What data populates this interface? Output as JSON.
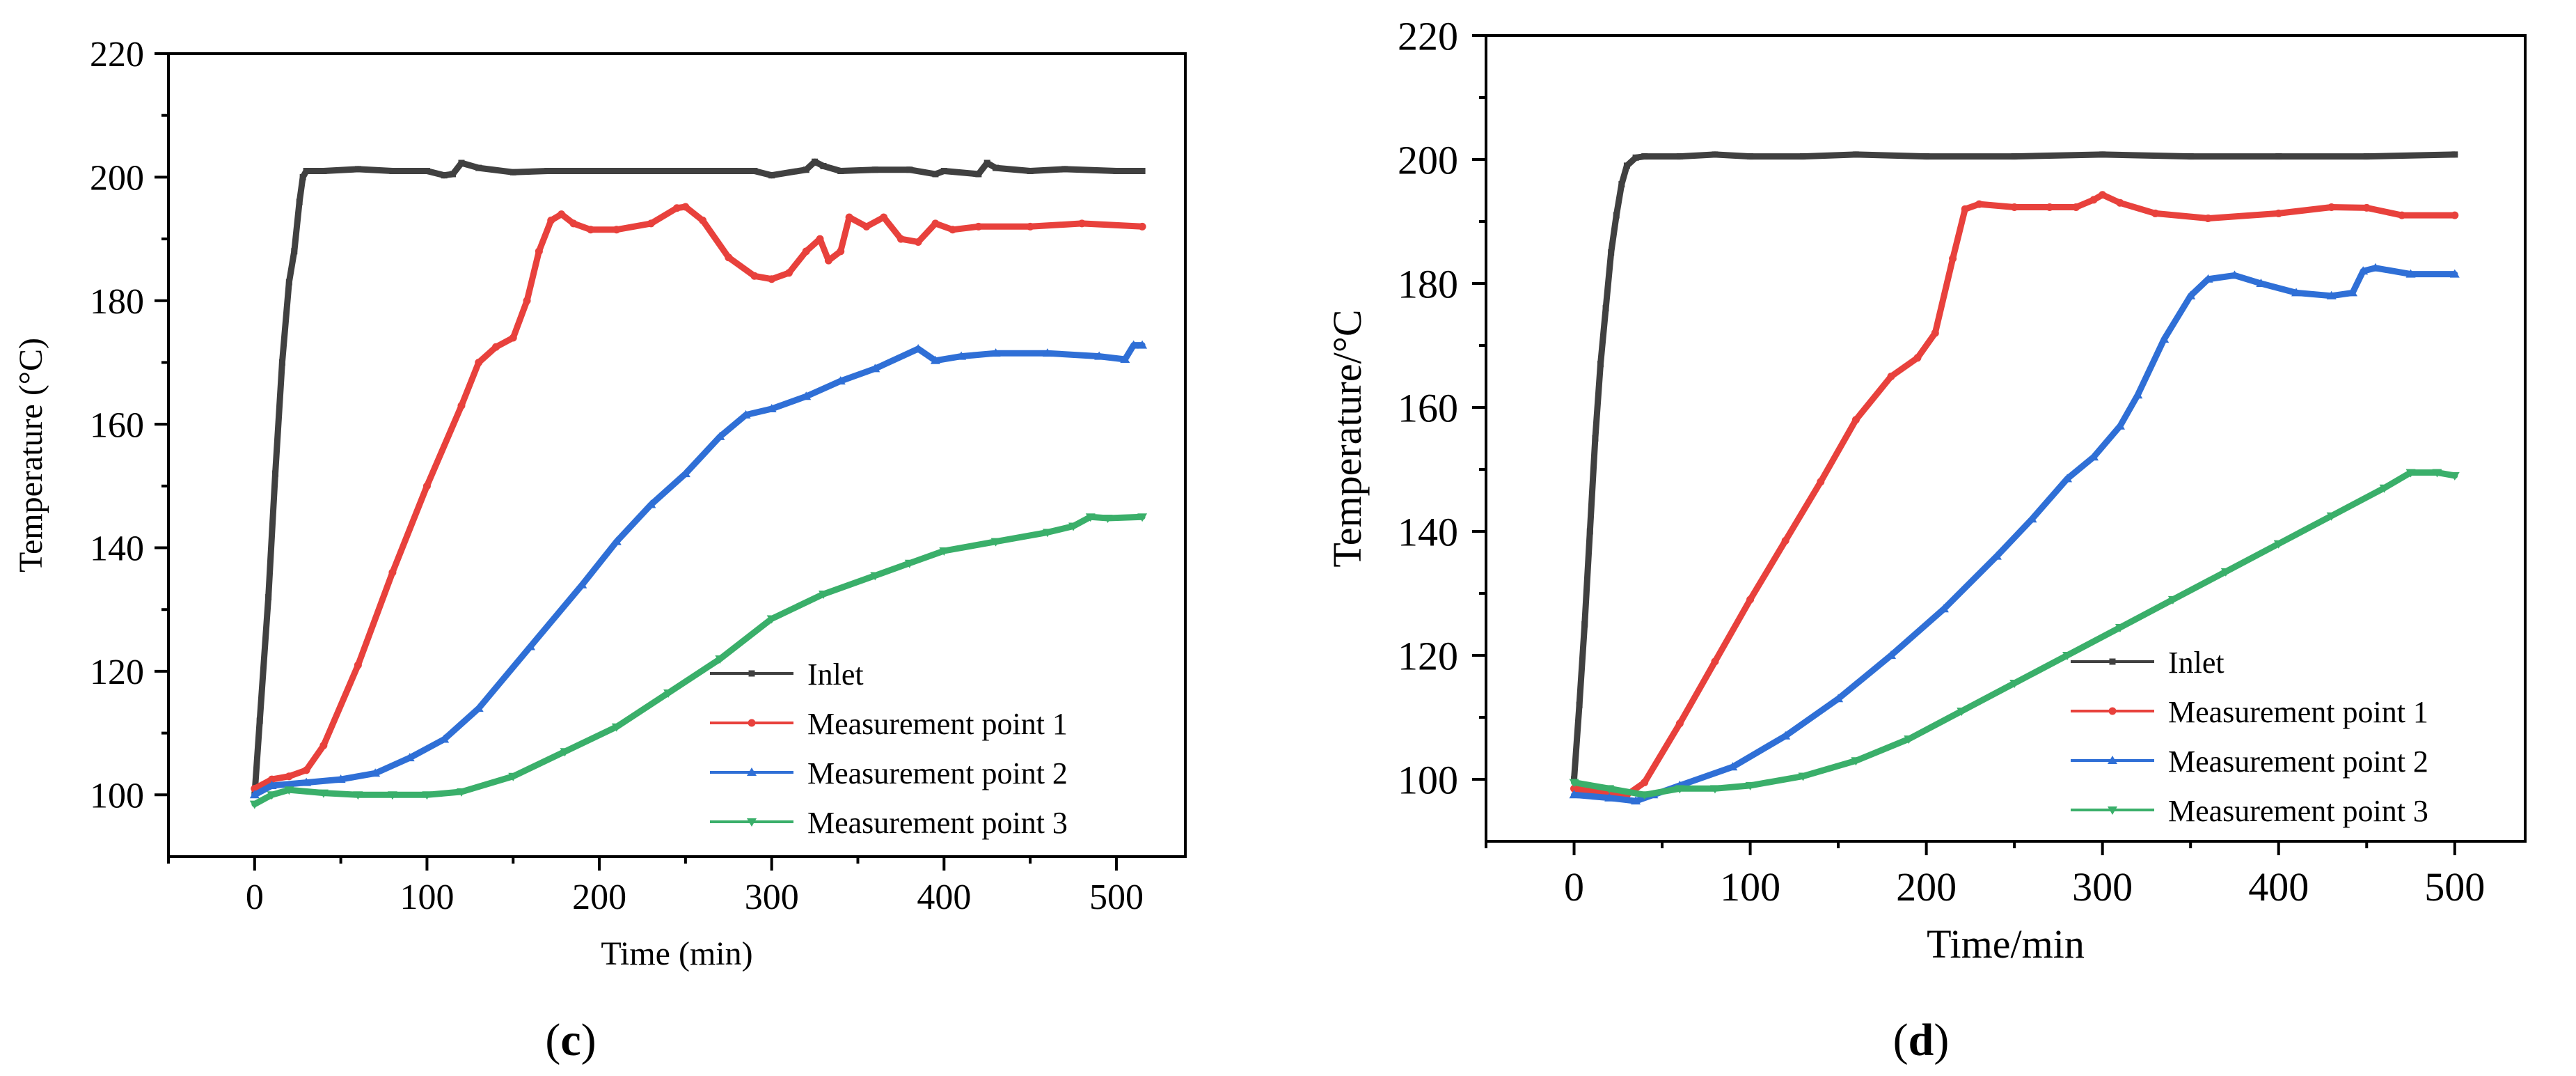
{
  "chart_data": [
    {
      "type": "line",
      "panel_label": "c",
      "title": "",
      "xlabel": "Time (min)",
      "ylabel": "Temperature (°C)",
      "xlim": [
        -50,
        540
      ],
      "ylim": [
        90,
        220
      ],
      "xticks": [
        0,
        100,
        200,
        300,
        400,
        500
      ],
      "yticks": [
        100,
        120,
        140,
        160,
        180,
        200,
        220
      ],
      "legend_position": "bottom-right",
      "series": [
        {
          "name": "Inlet",
          "color": "#404040",
          "marker": "square",
          "x": [
            0,
            3,
            8,
            12,
            16,
            20,
            23,
            26,
            28,
            30,
            40,
            60,
            80,
            100,
            110,
            115,
            120,
            130,
            150,
            170,
            200,
            250,
            290,
            300,
            320,
            325,
            330,
            340,
            360,
            380,
            395,
            400,
            420,
            425,
            430,
            450,
            470,
            500,
            515
          ],
          "y": [
            100,
            112,
            132,
            152,
            170,
            183,
            188,
            196,
            200,
            201,
            201,
            201.3,
            201,
            201,
            200.3,
            200.5,
            202.3,
            201.5,
            200.8,
            201,
            201,
            201,
            201,
            200.3,
            201.2,
            202.5,
            201.8,
            201,
            201.2,
            201.2,
            200.5,
            201,
            200.5,
            202.3,
            201.5,
            201,
            201.3,
            201,
            201
          ]
        },
        {
          "name": "Measurement point 1",
          "color": "#e8413c",
          "marker": "circle",
          "x": [
            0,
            10,
            20,
            30,
            40,
            60,
            80,
            100,
            120,
            130,
            140,
            150,
            158,
            165,
            172,
            178,
            185,
            195,
            210,
            230,
            245,
            250,
            260,
            275,
            290,
            300,
            310,
            320,
            328,
            333,
            340,
            345,
            355,
            365,
            375,
            385,
            395,
            405,
            420,
            450,
            480,
            515
          ],
          "y": [
            101,
            102.5,
            103,
            104,
            108,
            121,
            136,
            150,
            163,
            170,
            172.5,
            174,
            180,
            188,
            193,
            194,
            192.5,
            191.5,
            191.5,
            192.5,
            195,
            195.2,
            193,
            187,
            184,
            183.5,
            184.5,
            188,
            190,
            186.5,
            188,
            193.5,
            192,
            193.5,
            190,
            189.5,
            192.5,
            191.5,
            192,
            192,
            192.5,
            192
          ]
        },
        {
          "name": "Measurement point 2",
          "color": "#2f6fd6",
          "marker": "triangle",
          "x": [
            0,
            10,
            30,
            50,
            70,
            90,
            110,
            130,
            160,
            190,
            210,
            230,
            250,
            270,
            285,
            300,
            320,
            340,
            360,
            385,
            395,
            410,
            430,
            460,
            490,
            505,
            510,
            515
          ],
          "y": [
            100,
            101.5,
            102,
            102.5,
            103.5,
            106,
            109,
            114,
            124,
            134,
            141,
            147,
            152,
            158,
            161.5,
            162.5,
            164.5,
            167,
            169,
            172.2,
            170.3,
            171,
            171.5,
            171.5,
            171,
            170.5,
            172.8,
            172.8
          ]
        },
        {
          "name": "Measurement point 3",
          "color": "#3aaf6a",
          "marker": "triangle-down",
          "x": [
            0,
            10,
            20,
            40,
            60,
            80,
            100,
            120,
            150,
            180,
            210,
            240,
            270,
            300,
            330,
            360,
            380,
            400,
            430,
            460,
            475,
            485,
            495,
            515
          ],
          "y": [
            98.5,
            100,
            100.8,
            100.3,
            100,
            100,
            100,
            100.5,
            103,
            107,
            111,
            116.5,
            122,
            128.5,
            132.5,
            135.5,
            137.5,
            139.5,
            141,
            142.5,
            143.5,
            145,
            144.8,
            145
          ]
        }
      ]
    },
    {
      "type": "line",
      "panel_label": "d",
      "title": "",
      "xlabel": "Time/min",
      "ylabel": "Temperature/°C",
      "xlim": [
        -50,
        540
      ],
      "ylim": [
        90,
        220
      ],
      "xticks": [
        0,
        100,
        200,
        300,
        400,
        500
      ],
      "yticks": [
        100,
        120,
        140,
        160,
        180,
        200,
        220
      ],
      "legend_position": "bottom-right",
      "series": [
        {
          "name": "Inlet",
          "color": "#404040",
          "marker": "square",
          "x": [
            0,
            3,
            6,
            9,
            12,
            15,
            18,
            21,
            24,
            27,
            30,
            35,
            40,
            60,
            80,
            100,
            130,
            160,
            200,
            250,
            300,
            350,
            400,
            450,
            500
          ],
          "y": [
            100,
            112,
            125,
            140,
            155,
            167,
            176,
            185,
            191,
            196,
            199,
            200.3,
            200.5,
            200.5,
            200.8,
            200.5,
            200.5,
            200.8,
            200.5,
            200.5,
            200.8,
            200.5,
            200.5,
            200.5,
            200.8
          ]
        },
        {
          "name": "Measurement point 1",
          "color": "#e8413c",
          "marker": "circle",
          "x": [
            0,
            10,
            20,
            30,
            40,
            60,
            80,
            100,
            120,
            140,
            160,
            180,
            195,
            205,
            215,
            222,
            230,
            250,
            270,
            285,
            295,
            300,
            310,
            330,
            360,
            400,
            430,
            450,
            470,
            500
          ],
          "y": [
            98.5,
            98,
            97.8,
            97.5,
            99.5,
            109,
            119,
            129,
            138.5,
            148,
            158,
            165,
            168,
            172,
            184,
            192,
            192.8,
            192.3,
            192.3,
            192.3,
            193.5,
            194.3,
            193,
            191.3,
            190.5,
            191.3,
            192.3,
            192.2,
            191,
            191
          ]
        },
        {
          "name": "Measurement point 2",
          "color": "#2f6fd6",
          "marker": "triangle",
          "x": [
            0,
            20,
            35,
            45,
            60,
            90,
            120,
            150,
            180,
            210,
            240,
            260,
            280,
            295,
            310,
            320,
            335,
            350,
            360,
            375,
            390,
            410,
            430,
            442,
            448,
            455,
            475,
            500
          ],
          "y": [
            97.5,
            97,
            96.5,
            97.5,
            99,
            102,
            107,
            113,
            120,
            127.5,
            136,
            142,
            148.5,
            152,
            157,
            162,
            171,
            178,
            180.7,
            181.3,
            180,
            178.5,
            178,
            178.5,
            182,
            182.5,
            181.5,
            181.5
          ]
        },
        {
          "name": "Measurement point 3",
          "color": "#3aaf6a",
          "marker": "triangle-down",
          "x": [
            0,
            20,
            40,
            60,
            80,
            100,
            130,
            160,
            190,
            220,
            250,
            280,
            310,
            340,
            370,
            400,
            430,
            460,
            475,
            490,
            500
          ],
          "y": [
            99.5,
            98.5,
            97.5,
            98.5,
            98.5,
            99,
            100.5,
            103,
            106.5,
            111,
            115.5,
            120,
            124.5,
            129,
            133.5,
            138,
            142.5,
            147,
            149.5,
            149.5,
            149
          ]
        }
      ]
    }
  ]
}
